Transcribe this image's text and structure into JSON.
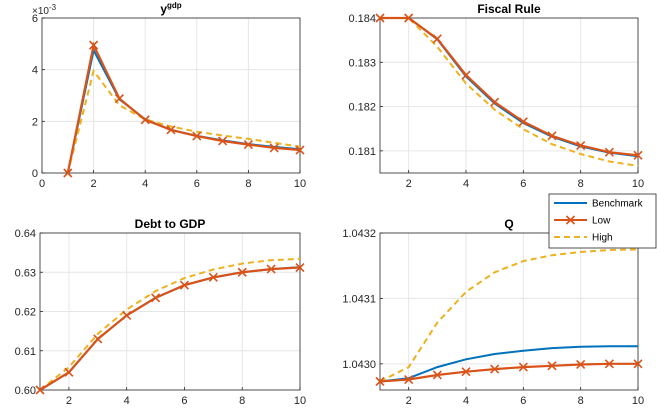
{
  "chart_data": [
    {
      "type": "line",
      "title": "y",
      "title_superscript": "gdp",
      "xlim": [
        0,
        10
      ],
      "ylim": [
        0,
        6
      ],
      "xticks": [
        0,
        2,
        4,
        6,
        8,
        10
      ],
      "yticks": [
        0,
        2,
        4,
        6
      ],
      "y_exponent": "×10",
      "y_exponent_power": "-3",
      "grid": true,
      "x": [
        1,
        2,
        3,
        4,
        5,
        6,
        7,
        8,
        9,
        10
      ],
      "series": [
        {
          "name": "Benchmark",
          "values": [
            0,
            4.75,
            2.85,
            2.08,
            1.67,
            1.44,
            1.26,
            1.12,
            1.01,
            0.92
          ]
        },
        {
          "name": "Low",
          "values": [
            0,
            4.95,
            2.88,
            2.06,
            1.67,
            1.43,
            1.24,
            1.1,
            0.97,
            0.89
          ]
        },
        {
          "name": "High",
          "values": [
            0,
            3.95,
            2.62,
            2.08,
            1.8,
            1.6,
            1.45,
            1.32,
            1.17,
            1.02
          ]
        }
      ]
    },
    {
      "type": "line",
      "title": "Fiscal Rule",
      "xlim": [
        1,
        10
      ],
      "ylim": [
        0.1805,
        0.184
      ],
      "xticks": [
        2,
        4,
        6,
        8,
        10
      ],
      "yticks": [
        0.181,
        0.182,
        0.183,
        0.184
      ],
      "grid": true,
      "x": [
        1,
        2,
        3,
        4,
        5,
        6,
        7,
        8,
        9,
        10
      ],
      "series": [
        {
          "name": "Benchmark",
          "values": [
            0.184,
            0.184,
            0.18352,
            0.18268,
            0.18207,
            0.18163,
            0.18132,
            0.1811,
            0.18096,
            0.18088
          ]
        },
        {
          "name": "Low",
          "values": [
            0.184,
            0.184,
            0.18353,
            0.18271,
            0.1821,
            0.18166,
            0.18134,
            0.18112,
            0.18097,
            0.1809
          ]
        },
        {
          "name": "High",
          "values": [
            0.184,
            0.184,
            0.18335,
            0.18252,
            0.18193,
            0.18149,
            0.18115,
            0.18093,
            0.18076,
            0.18066
          ]
        }
      ]
    },
    {
      "type": "line",
      "title": "Debt to GDP",
      "xlim": [
        1,
        10
      ],
      "ylim": [
        0.6,
        0.64
      ],
      "xticks": [
        2,
        4,
        6,
        8,
        10
      ],
      "yticks": [
        0.6,
        0.61,
        0.62,
        0.63,
        0.64
      ],
      "grid": true,
      "x": [
        1,
        2,
        3,
        4,
        5,
        6,
        7,
        8,
        9,
        10
      ],
      "series": [
        {
          "name": "Benchmark",
          "values": [
            0.6,
            0.6045,
            0.613,
            0.619,
            0.6235,
            0.6267,
            0.6287,
            0.63,
            0.6308,
            0.6313
          ]
        },
        {
          "name": "Low",
          "values": [
            0.6,
            0.6045,
            0.613,
            0.619,
            0.6235,
            0.6267,
            0.6287,
            0.63,
            0.6308,
            0.6312
          ]
        },
        {
          "name": "High",
          "values": [
            0.6,
            0.6058,
            0.6143,
            0.6205,
            0.6252,
            0.6285,
            0.6307,
            0.6322,
            0.6331,
            0.6334
          ]
        }
      ]
    },
    {
      "type": "line",
      "title": "Q",
      "xlim": [
        1,
        10
      ],
      "ylim": [
        1.04296,
        1.0432
      ],
      "xticks": [
        2,
        4,
        6,
        8,
        10
      ],
      "yticks": [
        1.043,
        1.0431,
        1.0432
      ],
      "grid": true,
      "legend": "top-right",
      "x": [
        1,
        2,
        3,
        4,
        5,
        6,
        7,
        8,
        9,
        10
      ],
      "series": [
        {
          "name": "Benchmark",
          "values": [
            1.042973,
            1.042978,
            1.042995,
            1.043007,
            1.043015,
            1.04302,
            1.043024,
            1.043026,
            1.043027,
            1.043027
          ],
          "color": "#0072bd"
        },
        {
          "name": "Low",
          "values": [
            1.042973,
            1.042976,
            1.042983,
            1.042988,
            1.042992,
            1.042995,
            1.042997,
            1.042999,
            1.043,
            1.043
          ],
          "color": "#d95319"
        },
        {
          "name": "High",
          "values": [
            1.042973,
            1.042995,
            1.043063,
            1.04311,
            1.04314,
            1.043157,
            1.043166,
            1.043171,
            1.043174,
            1.043175
          ],
          "color": "#edb120"
        }
      ]
    }
  ],
  "legend": {
    "entries": [
      "Benchmark",
      "Low",
      "High"
    ]
  },
  "colors": {
    "Benchmark": "#0072bd",
    "Low": "#d95319",
    "High": "#edb120",
    "grid": "#e6e6e6",
    "axis": "#262626"
  }
}
